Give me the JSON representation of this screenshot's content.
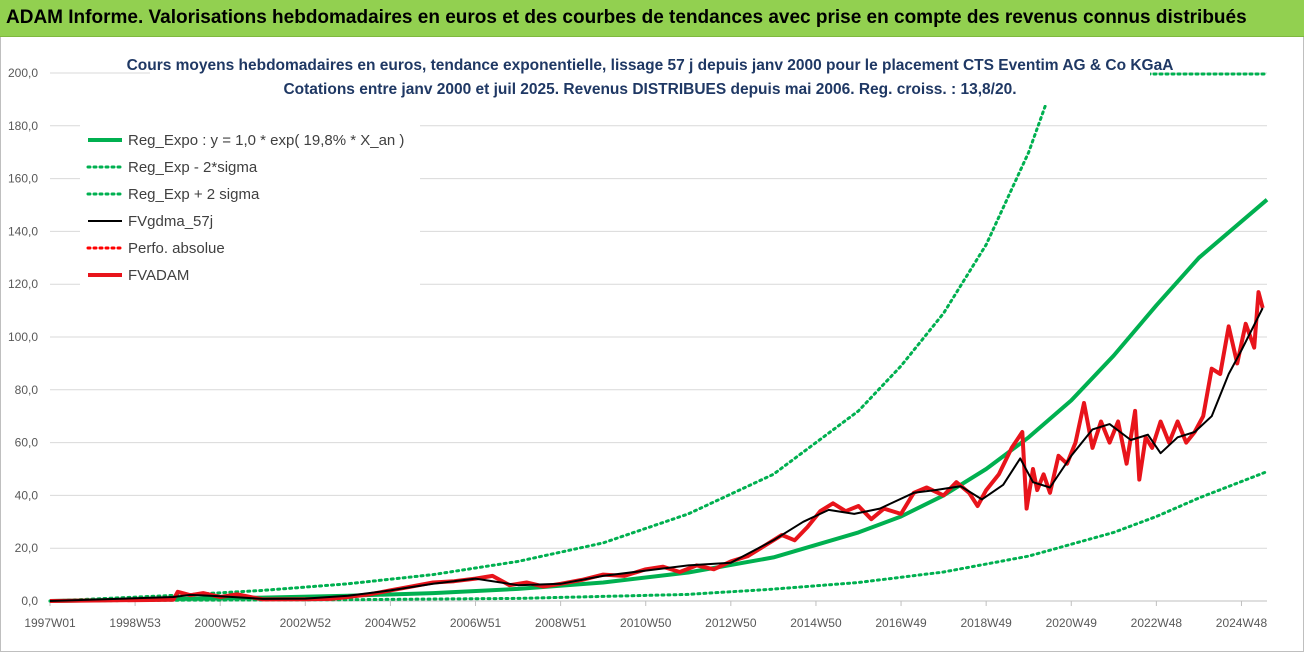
{
  "banner": {
    "title": "ADAM Informe. Valorisations hebdomadaires en euros et des courbes de tendances avec prise en compte des revenus connus distribués"
  },
  "colors": {
    "banner_bg": "#92d050",
    "reg_expo": "#00b050",
    "fvgdma": "#000000",
    "perfo": "#ff0000",
    "fvadam": "#e8141b",
    "title_text": "#1f3864"
  },
  "chart_data": {
    "type": "line",
    "title": "Cours moyens hebdomadaires en euros, tendance exponentielle, lissage 57 j depuis janv 2000 pour le placement CTS Eventim AG & Co KGaA",
    "subtitle": "Cotations entre janv 2000 et juil 2025. Revenus DISTRIBUES depuis mai 2006. Reg. croiss. : 13,8/20.",
    "xlabel": "",
    "ylabel": "",
    "ylim": [
      0,
      200
    ],
    "y_ticks": [
      "0,0",
      "20,0",
      "40,0",
      "60,0",
      "80,0",
      "100,0",
      "120,0",
      "140,0",
      "160,0",
      "180,0",
      "200,0"
    ],
    "x_range": [
      1997.0,
      2025.6
    ],
    "x_ticks": [
      {
        "x": 1997.0,
        "label": "1997W01"
      },
      {
        "x": 1999.0,
        "label": "1998W53"
      },
      {
        "x": 2001.0,
        "label": "2000W52"
      },
      {
        "x": 2003.0,
        "label": "2002W52"
      },
      {
        "x": 2005.0,
        "label": "2004W52"
      },
      {
        "x": 2007.0,
        "label": "2006W51"
      },
      {
        "x": 2009.0,
        "label": "2008W51"
      },
      {
        "x": 2011.0,
        "label": "2010W50"
      },
      {
        "x": 2013.0,
        "label": "2012W50"
      },
      {
        "x": 2015.0,
        "label": "2014W50"
      },
      {
        "x": 2017.0,
        "label": "2016W49"
      },
      {
        "x": 2019.0,
        "label": "2018W49"
      },
      {
        "x": 2021.0,
        "label": "2020W49"
      },
      {
        "x": 2023.0,
        "label": "2022W48"
      },
      {
        "x": 2025.0,
        "label": "2024W48"
      }
    ],
    "grid": "horizontal",
    "legend_position": "top-left",
    "series": [
      {
        "name": "Reg_Expo : y = 1,0 * exp( 19,8% *  X_an )",
        "style": "solid-thick",
        "color": "#00b050",
        "x": [
          1997.0,
          2000.0,
          2002.0,
          2004.0,
          2006.0,
          2008.0,
          2010.0,
          2012.0,
          2014.0,
          2016.0,
          2017.0,
          2018.0,
          2019.0,
          2020.0,
          2021.0,
          2022.0,
          2023.0,
          2024.0,
          2025.6
        ],
        "y": [
          0,
          0.8,
          1.3,
          2.0,
          3.0,
          4.6,
          7.0,
          10.8,
          16.5,
          26.0,
          32.0,
          40.0,
          50.0,
          62.0,
          76.0,
          93.0,
          112.0,
          130.0,
          152.0
        ]
      },
      {
        "name": "Reg_Exp - 2*sigma",
        "style": "dotted",
        "color": "#00b050",
        "x": [
          1997.0,
          2000.0,
          2004.0,
          2008.0,
          2012.0,
          2014.0,
          2016.0,
          2018.0,
          2020.0,
          2022.0,
          2023.0,
          2024.0,
          2025.6
        ],
        "y": [
          0,
          0.3,
          0.5,
          1.0,
          2.5,
          4.5,
          7.0,
          11.0,
          17.0,
          26.0,
          32.0,
          39.0,
          49.0
        ]
      },
      {
        "name": "Reg_Exp + 2 sigma",
        "style": "dotted",
        "color": "#00b050",
        "x": [
          1997.0,
          2000.0,
          2002.0,
          2004.0,
          2006.0,
          2008.0,
          2010.0,
          2012.0,
          2014.0,
          2016.0,
          2017.0,
          2018.0,
          2019.0,
          2020.0,
          2020.4
        ],
        "y": [
          0,
          2.2,
          4.0,
          6.5,
          10.0,
          15.0,
          22.0,
          33.0,
          48.0,
          72.0,
          89.0,
          109.0,
          135.0,
          170.0,
          188.0
        ]
      },
      {
        "name": "FVgdma_57j",
        "style": "solid-thin",
        "color": "#000000",
        "x": [
          1997.0,
          1999.9,
          2000.3,
          2001.0,
          2002.0,
          2003.0,
          2004.0,
          2005.0,
          2006.0,
          2007.0,
          2008.0,
          2009.0,
          2010.0,
          2011.0,
          2012.0,
          2013.0,
          2014.0,
          2014.7,
          2015.3,
          2015.9,
          2016.5,
          2017.3,
          2017.8,
          2018.4,
          2018.9,
          2019.4,
          2019.8,
          2020.1,
          2020.5,
          2021.0,
          2021.5,
          2021.9,
          2022.4,
          2022.8,
          2023.1,
          2023.5,
          2023.9,
          2024.3,
          2024.7,
          2025.0,
          2025.5
        ],
        "y": [
          0,
          1.5,
          2.3,
          1.8,
          0.8,
          0.9,
          2.0,
          4.0,
          6.5,
          8.5,
          6.0,
          6.5,
          9.5,
          11.5,
          13.5,
          14.5,
          23.0,
          30.0,
          34.5,
          33.0,
          35.0,
          41.0,
          42.0,
          43.5,
          38.5,
          44.0,
          54.0,
          45.0,
          43.0,
          55.0,
          65.0,
          67.0,
          61.0,
          63.0,
          56.0,
          62.0,
          64.0,
          70.0,
          86.0,
          95.0,
          111.0
        ]
      },
      {
        "name": "Perfo. absolue",
        "style": "dotted",
        "color": "#ff0000",
        "x": [],
        "y": []
      },
      {
        "name": "FVADAM",
        "style": "solid-thick",
        "color": "#e8141b",
        "x": [
          1997.0,
          1999.9,
          2000.0,
          2000.3,
          2000.6,
          2001.0,
          2001.4,
          2002.0,
          2003.0,
          2003.6,
          2004.0,
          2004.5,
          2005.0,
          2005.5,
          2006.0,
          2006.5,
          2007.0,
          2007.4,
          2007.8,
          2008.2,
          2008.6,
          2009.0,
          2009.5,
          2010.0,
          2010.5,
          2011.0,
          2011.4,
          2011.8,
          2012.2,
          2012.6,
          2013.0,
          2013.4,
          2013.8,
          2014.2,
          2014.5,
          2014.8,
          2015.1,
          2015.4,
          2015.7,
          2016.0,
          2016.3,
          2016.6,
          2017.0,
          2017.3,
          2017.6,
          2018.0,
          2018.3,
          2018.6,
          2018.8,
          2019.0,
          2019.3,
          2019.6,
          2019.85,
          2019.95,
          2020.1,
          2020.2,
          2020.35,
          2020.5,
          2020.7,
          2020.9,
          2021.1,
          2021.3,
          2021.5,
          2021.7,
          2021.9,
          2022.1,
          2022.3,
          2022.5,
          2022.6,
          2022.75,
          2022.9,
          2023.1,
          2023.3,
          2023.5,
          2023.7,
          2023.9,
          2024.1,
          2024.3,
          2024.5,
          2024.7,
          2024.9,
          2025.1,
          2025.3,
          2025.4,
          2025.5
        ],
        "y": [
          0,
          0.5,
          3.5,
          2.2,
          3.0,
          1.5,
          2.5,
          0.6,
          0.7,
          0.8,
          1.5,
          2.5,
          4.0,
          5.5,
          7.0,
          7.5,
          8.5,
          9.5,
          6.0,
          7.0,
          5.5,
          6.5,
          8.0,
          10.0,
          9.5,
          12.0,
          13.0,
          11.0,
          13.5,
          12.0,
          15.0,
          17.0,
          21.0,
          25.0,
          23.0,
          28.0,
          34.0,
          37.0,
          34.0,
          36.0,
          31.0,
          35.0,
          33.0,
          41.0,
          43.0,
          40.0,
          45.0,
          41.0,
          36.0,
          42.0,
          48.0,
          58.0,
          64.0,
          35.0,
          50.0,
          42.0,
          48.0,
          41.0,
          55.0,
          52.0,
          60.0,
          75.0,
          58.0,
          68.0,
          60.0,
          68.0,
          52.0,
          72.0,
          46.0,
          62.0,
          58.0,
          68.0,
          60.0,
          68.0,
          60.0,
          64.0,
          70.0,
          88.0,
          86.0,
          104.0,
          90.0,
          105.0,
          96.0,
          117.0,
          111.0
        ]
      }
    ]
  }
}
